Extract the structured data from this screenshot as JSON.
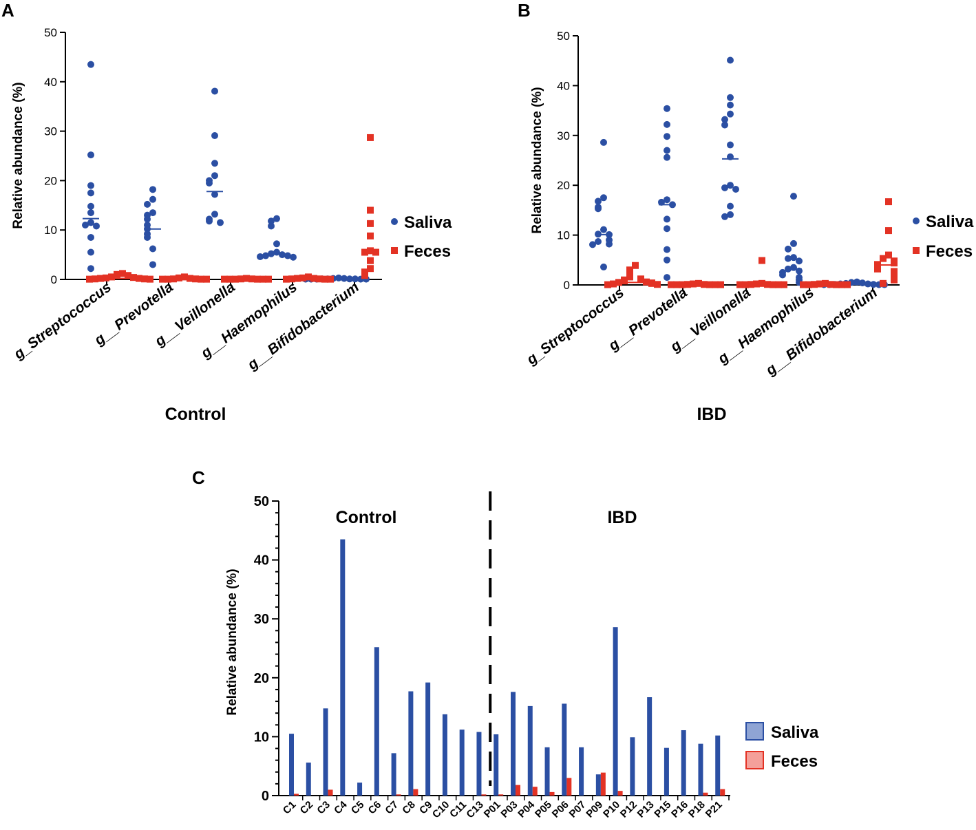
{
  "chart_data": [
    {
      "panel": "A",
      "type": "scatter",
      "title": "Control",
      "ylabel": "Relative abundance (%)",
      "ylim": [
        0,
        50
      ],
      "yticks": [
        0,
        10,
        20,
        30,
        40,
        50
      ],
      "categories": [
        "g_Streptococcus",
        "g__Prevotella",
        "g__Veillonella",
        "g__Haemophilus",
        "g__Bifidobacterium"
      ],
      "legend": [
        "Saliva",
        "Feces"
      ],
      "series": [
        {
          "name": "Saliva",
          "color": "#2b4fa3",
          "points": [
            [
              43.5,
              25.2,
              19,
              17.5,
              14.8,
              13.5,
              11.5,
              11,
              10.8,
              8.5,
              5.5,
              2.2
            ],
            [
              18.2,
              16.2,
              15.2,
              13.5,
              13,
              12.2,
              11,
              10.2,
              9.2,
              8.5,
              6.2,
              3
            ],
            [
              38.1,
              29.1,
              23.5,
              21,
              20,
              19.5,
              17.2,
              13.2,
              12.2,
              11.8,
              11.5
            ],
            [
              12.3,
              11.8,
              10.8,
              7.2,
              5.5,
              5.2,
              5,
              4.8,
              4.8,
              4.6,
              4.5
            ],
            [
              0.3,
              0.2,
              0.2,
              0.1,
              0.1,
              0.1,
              0.1,
              0.05,
              0.05,
              0.05,
              0.05,
              0.05
            ]
          ],
          "medians": [
            12.3,
            10.2,
            17.8,
            5.1,
            0.1
          ]
        },
        {
          "name": "Feces",
          "color": "#e33224",
          "points": [
            [
              1.2,
              1,
              0.8,
              0.5,
              0.4,
              0.3,
              0.2,
              0.2,
              0.1,
              0.1,
              0.05,
              0.05
            ],
            [
              0.5,
              0.3,
              0.2,
              0.1,
              0.1,
              0.05,
              0.05,
              0.05,
              0.05
            ],
            [
              0.2,
              0.1,
              0.1,
              0.05,
              0.05,
              0.05,
              0.05,
              0.05,
              0.05
            ],
            [
              0.5,
              0.3,
              0.2,
              0.2,
              0.1,
              0.1,
              0.05,
              0.05,
              0.05
            ],
            [
              28.7,
              14,
              11.3,
              8.8,
              5.8,
              5.5,
              5.5,
              3.8,
              2.2,
              1.5,
              0.8
            ]
          ],
          "medians": [
            0.2,
            0.05,
            0.05,
            0.05,
            5.5
          ]
        }
      ]
    },
    {
      "panel": "B",
      "type": "scatter",
      "title": "IBD",
      "ylabel": "Relative abundance (%)",
      "ylim": [
        0,
        50
      ],
      "yticks": [
        0,
        10,
        20,
        30,
        40,
        50
      ],
      "categories": [
        "g_Streptococcus",
        "g__Prevotella",
        "g__Veillonella",
        "g__Haemophilus",
        "g__Bifidobacterium"
      ],
      "legend": [
        "Saliva",
        "Feces"
      ],
      "series": [
        {
          "name": "Saliva",
          "color": "#2b4fa3",
          "points": [
            [
              28.6,
              17.5,
              16.8,
              15.6,
              15.3,
              11.1,
              10.2,
              10.1,
              9,
              8.7,
              8.2,
              8.1,
              3.6
            ],
            [
              35.4,
              32.2,
              29.8,
              27,
              25.6,
              17.1,
              16.6,
              16.1,
              13.2,
              11.3,
              7.1,
              5,
              1.5
            ],
            [
              45.1,
              37.6,
              36.1,
              34.3,
              33.2,
              32.1,
              28.1,
              25.7,
              20,
              19.5,
              19.2,
              15.8,
              14.1,
              13.7
            ],
            [
              17.8,
              8.3,
              7.2,
              5.5,
              5.3,
              4.8,
              3.5,
              3.2,
              2.8,
              2.5,
              2,
              1.5,
              1,
              0.5
            ],
            [
              0.6,
              0.5,
              0.4,
              0.3,
              0.2,
              0.2,
              0.1,
              0.1,
              0.05,
              0.05,
              0.05,
              0.05
            ]
          ],
          "medians": [
            10.1,
            16.1,
            25.3,
            3.2,
            0.1
          ]
        },
        {
          "name": "Feces",
          "color": "#e33224",
          "points": [
            [
              3.9,
              3,
              2.2,
              1.6,
              1.2,
              1,
              0.8,
              0.6,
              0.5,
              0.4,
              0.3,
              0.2,
              0.1,
              0.05
            ],
            [
              0.3,
              0.2,
              0.1,
              0.1,
              0.05,
              0.05,
              0.05,
              0.05,
              0.05,
              0.05
            ],
            [
              4.9,
              0.3,
              0.2,
              0.1,
              0.1,
              0.05,
              0.05,
              0.05,
              0.05,
              0.05
            ],
            [
              0.3,
              0.2,
              0.1,
              0.1,
              0.05,
              0.05,
              0.05,
              0.05,
              0.05
            ],
            [
              16.7,
              10.9,
              6,
              5.3,
              4.8,
              4.4,
              4.1,
              3.7,
              3.2,
              2.7,
              2.2,
              1.7,
              1,
              0.3
            ]
          ],
          "medians": [
            0.5,
            0.05,
            0.05,
            0.05,
            4
          ]
        }
      ]
    },
    {
      "panel": "C",
      "type": "bar",
      "ylabel": "Relative abundance (%)",
      "ylim": [
        0,
        50
      ],
      "yticks": [
        0,
        10,
        20,
        30,
        40,
        50
      ],
      "group_labels": [
        "Control",
        "IBD"
      ],
      "categories": [
        "C1",
        "C2",
        "C3",
        "C4",
        "C5",
        "C6",
        "C7",
        "C8",
        "C9",
        "C10",
        "C11",
        "C13",
        "P01",
        "P03",
        "P04",
        "P05",
        "P06",
        "P07",
        "P09",
        "P10",
        "P12",
        "P13",
        "P15",
        "P16",
        "P18",
        "P21"
      ],
      "divider_after_index": 11,
      "legend": [
        "Saliva",
        "Feces"
      ],
      "series": [
        {
          "name": "Saliva",
          "color": "#2b4fa3",
          "legend_fill": "#8fa4d4",
          "values": [
            10.5,
            5.6,
            14.8,
            43.5,
            2.2,
            25.2,
            7.2,
            17.7,
            19.2,
            13.8,
            11.2,
            10.8,
            10.4,
            17.6,
            15.2,
            8.2,
            15.6,
            8.2,
            3.6,
            28.6,
            9.9,
            16.7,
            8.1,
            11.1,
            8.8,
            10.2
          ]
        },
        {
          "name": "Feces",
          "color": "#e33224",
          "legend_fill": "#f4a09a",
          "values": [
            0.3,
            0,
            1.0,
            0,
            0,
            0,
            0.2,
            1.1,
            0,
            0,
            0,
            0.2,
            0.2,
            1.8,
            1.5,
            0.6,
            3.0,
            0,
            3.9,
            0.8,
            0,
            0,
            0,
            0,
            0.5,
            1.1
          ]
        }
      ]
    }
  ]
}
